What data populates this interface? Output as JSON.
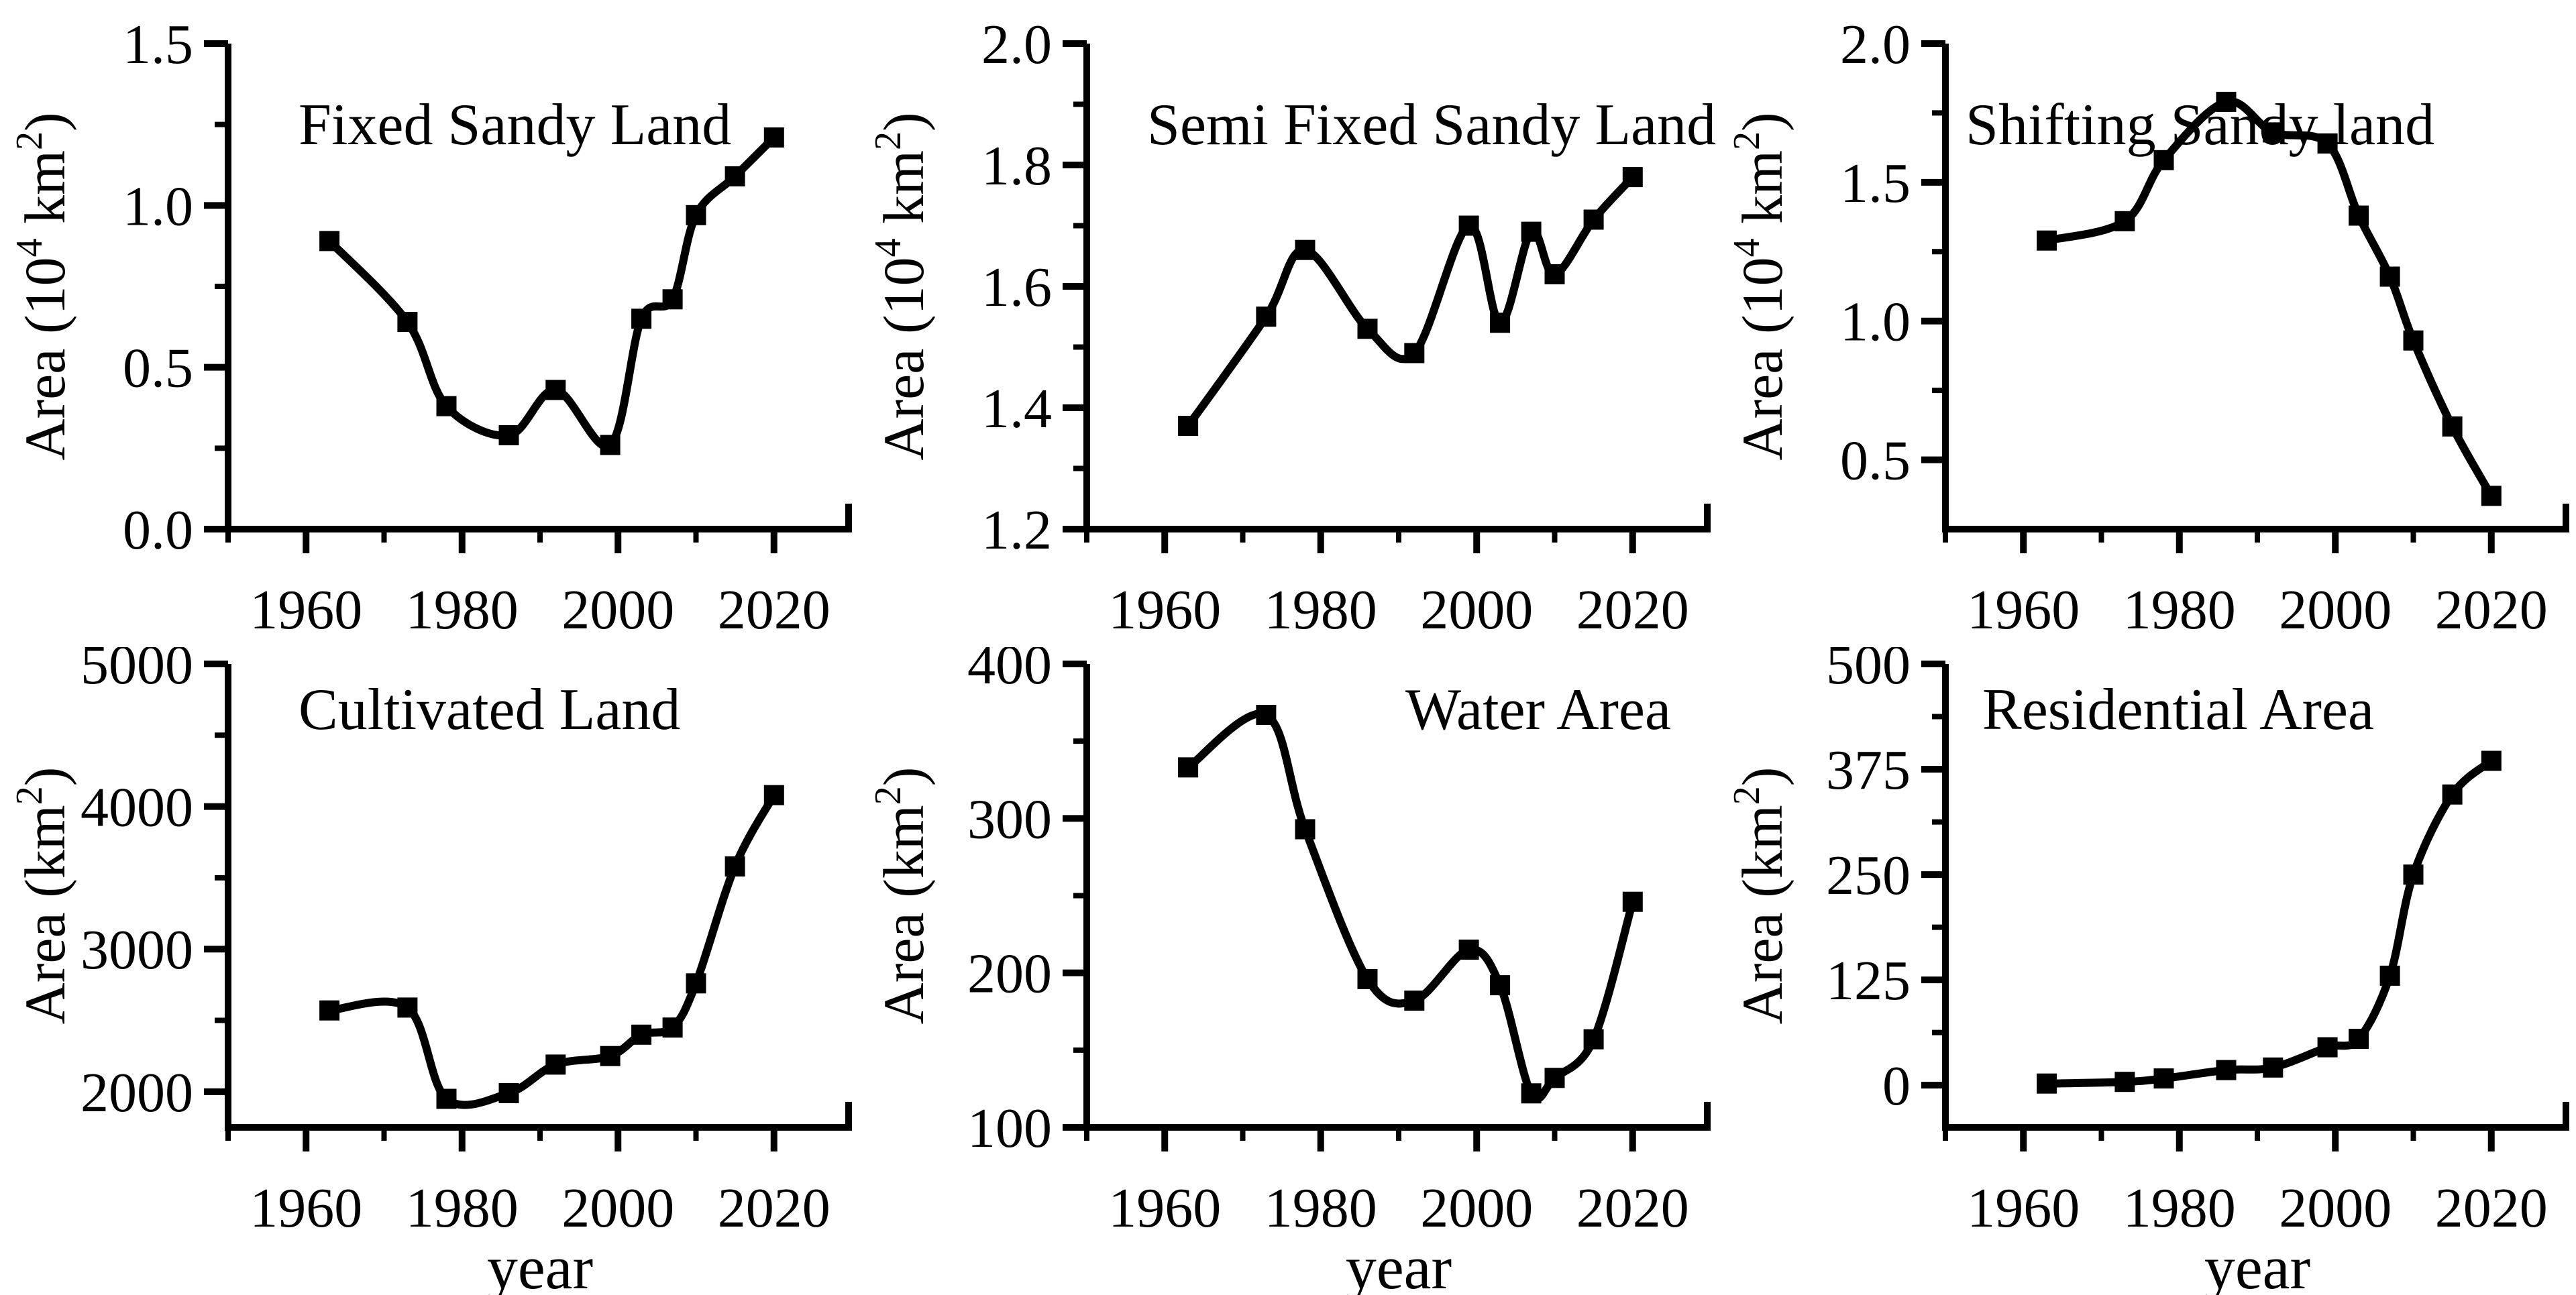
{
  "figure": {
    "background": "#ffffff",
    "ink_color": "#000000",
    "xlabel": "year",
    "years": [
      1963,
      1973,
      1978,
      1986,
      1992,
      1999,
      2003,
      2007,
      2010,
      2015,
      2020
    ],
    "x_axis": {
      "range": [
        1950,
        2030
      ],
      "major_ticks": [
        1960,
        1980,
        2000,
        2020
      ],
      "major_labels": [
        "1960",
        "1980",
        "2000",
        "2020"
      ],
      "minor_ticks": [
        1950,
        1970,
        1990,
        2010
      ]
    }
  },
  "chart_data": [
    {
      "id": "fixed-sandy-land",
      "type": "line",
      "title": "Fixed Sandy Land",
      "ylabel_parts": [
        {
          "t": "Area (10"
        },
        {
          "t": "4",
          "sup": true
        },
        {
          "t": " km"
        },
        {
          "t": "2",
          "sup": true
        },
        {
          "t": ")"
        }
      ],
      "xlabel": "",
      "x": [
        1963,
        1973,
        1978,
        1986,
        1992,
        1999,
        2003,
        2007,
        2010,
        2015,
        2020
      ],
      "y": [
        0.89,
        0.64,
        0.38,
        0.29,
        0.43,
        0.26,
        0.65,
        0.71,
        0.97,
        1.09,
        1.21
      ],
      "xlim": [
        1950,
        2030
      ],
      "ylim": [
        0.0,
        1.5
      ],
      "xticks": {
        "major": [
          1960,
          1980,
          2000,
          2020
        ],
        "labels": [
          "1960",
          "1980",
          "2000",
          "2020"
        ],
        "minor": [
          1950,
          1970,
          1990,
          2010
        ]
      },
      "yticks": {
        "major": [
          0.0,
          0.5,
          1.0,
          1.5
        ],
        "labels": [
          "0.0",
          "0.5",
          "1.0",
          "1.5"
        ],
        "minor": [
          0.25,
          0.75,
          1.25
        ]
      },
      "marker": "square",
      "line_color": "#000000",
      "grid": false,
      "row": 1,
      "title_offset_x": 105
    },
    {
      "id": "semi-fixed-sandy-land",
      "type": "line",
      "title": "Semi Fixed Sandy Land",
      "ylabel_parts": [
        {
          "t": "Area (10"
        },
        {
          "t": "4",
          "sup": true
        },
        {
          "t": " km"
        },
        {
          "t": "2",
          "sup": true
        },
        {
          "t": ")"
        }
      ],
      "xlabel": "",
      "x": [
        1963,
        1973,
        1978,
        1986,
        1992,
        1999,
        2003,
        2007,
        2010,
        2015,
        2020
      ],
      "y": [
        1.37,
        1.55,
        1.66,
        1.53,
        1.49,
        1.7,
        1.54,
        1.69,
        1.62,
        1.71,
        1.78
      ],
      "xlim": [
        1950,
        2030
      ],
      "ylim": [
        1.2,
        2.0
      ],
      "xticks": {
        "major": [
          1960,
          1980,
          2000,
          2020
        ],
        "labels": [
          "1960",
          "1980",
          "2000",
          "2020"
        ],
        "minor": [
          1950,
          1970,
          1990,
          2010
        ]
      },
      "yticks": {
        "major": [
          1.2,
          1.4,
          1.6,
          1.8,
          2.0
        ],
        "labels": [
          "1.2",
          "1.4",
          "1.6",
          "1.8",
          "2.0"
        ],
        "minor": [
          1.3,
          1.5,
          1.7,
          1.9
        ]
      },
      "marker": "square",
      "line_color": "#000000",
      "grid": false,
      "row": 1,
      "title_offset_x": 90
    },
    {
      "id": "shifting-sandy-land",
      "type": "line",
      "title": "Shifting Sandy land",
      "ylabel_parts": [
        {
          "t": "Area (10"
        },
        {
          "t": "4",
          "sup": true
        },
        {
          "t": " km"
        },
        {
          "t": "2",
          "sup": true
        },
        {
          "t": ")"
        }
      ],
      "xlabel": "",
      "x": [
        1963,
        1973,
        1978,
        1986,
        1992,
        1999,
        2003,
        2007,
        2010,
        2015,
        2020
      ],
      "y": [
        1.29,
        1.36,
        1.58,
        1.79,
        1.68,
        1.64,
        1.38,
        1.16,
        0.93,
        0.62,
        0.37
      ],
      "xlim": [
        1950,
        2030
      ],
      "ylim": [
        0.25,
        2.0
      ],
      "xticks": {
        "major": [
          1960,
          1980,
          2000,
          2020
        ],
        "labels": [
          "1960",
          "1980",
          "2000",
          "2020"
        ],
        "minor": [
          1950,
          1970,
          1990,
          2010
        ]
      },
      "yticks": {
        "major": [
          0.5,
          1.0,
          1.5,
          2.0
        ],
        "labels": [
          "0.5",
          "1.0",
          "1.5",
          "2.0"
        ],
        "minor": [
          0.75,
          1.25,
          1.75
        ]
      },
      "marker": "square",
      "line_color": "#000000",
      "grid": false,
      "row": 1,
      "title_offset_x": 30
    },
    {
      "id": "cultivated-land",
      "type": "line",
      "title": "Cultivated Land",
      "ylabel_parts": [
        {
          "t": "Area (km"
        },
        {
          "t": "2",
          "sup": true
        },
        {
          "t": ")"
        }
      ],
      "xlabel": "year",
      "x": [
        1963,
        1973,
        1978,
        1986,
        1992,
        1999,
        2003,
        2007,
        2010,
        2015,
        2020
      ],
      "y": [
        2570,
        2590,
        1950,
        1990,
        2190,
        2250,
        2400,
        2450,
        2760,
        3580,
        4080
      ],
      "xlim": [
        1950,
        2030
      ],
      "ylim": [
        1750,
        5000
      ],
      "xticks": {
        "major": [
          1960,
          1980,
          2000,
          2020
        ],
        "labels": [
          "1960",
          "1980",
          "2000",
          "2020"
        ],
        "minor": [
          1950,
          1970,
          1990,
          2010
        ]
      },
      "yticks": {
        "major": [
          2000,
          3000,
          4000,
          5000
        ],
        "labels": [
          "2000",
          "3000",
          "4000",
          "5000"
        ],
        "minor": [
          2500,
          3500,
          4500
        ]
      },
      "marker": "square",
      "line_color": "#000000",
      "grid": false,
      "row": 2,
      "title_offset_x": 105
    },
    {
      "id": "water-area",
      "type": "line",
      "title": "Water Area",
      "ylabel_parts": [
        {
          "t": "Area (km"
        },
        {
          "t": "2",
          "sup": true
        },
        {
          "t": ")"
        }
      ],
      "xlabel": "year",
      "x": [
        1963,
        1973,
        1978,
        1986,
        1992,
        1999,
        2003,
        2007,
        2010,
        2015,
        2020
      ],
      "y": [
        333,
        367,
        293,
        196,
        182,
        215,
        192,
        122,
        132,
        157,
        246
      ],
      "xlim": [
        1950,
        2030
      ],
      "ylim": [
        100,
        400
      ],
      "xticks": {
        "major": [
          1960,
          1980,
          2000,
          2020
        ],
        "labels": [
          "1960",
          "1980",
          "2000",
          "2020"
        ],
        "minor": [
          1950,
          1970,
          1990,
          2010
        ]
      },
      "yticks": {
        "major": [
          100,
          200,
          300,
          400
        ],
        "labels": [
          "100",
          "200",
          "300",
          "400"
        ],
        "minor": [
          150,
          250,
          350
        ]
      },
      "marker": "square",
      "line_color": "#000000",
      "grid": false,
      "row": 2,
      "title_offset_x": 475
    },
    {
      "id": "residential-area",
      "type": "line",
      "title": "Residential Area",
      "ylabel_parts": [
        {
          "t": "Area (km"
        },
        {
          "t": "2",
          "sup": true
        },
        {
          "t": ")"
        }
      ],
      "xlabel": "year",
      "x": [
        1963,
        1973,
        1978,
        1986,
        1992,
        1999,
        2003,
        2007,
        2010,
        2015,
        2020
      ],
      "y": [
        2,
        4,
        8,
        18,
        21,
        45,
        55,
        130,
        250,
        345,
        385
      ],
      "xlim": [
        1950,
        2030
      ],
      "ylim": [
        -50,
        500
      ],
      "xticks": {
        "major": [
          1960,
          1980,
          2000,
          2020
        ],
        "labels": [
          "1960",
          "1980",
          "2000",
          "2020"
        ],
        "minor": [
          1950,
          1970,
          1990,
          2010
        ]
      },
      "yticks": {
        "major": [
          0,
          125,
          250,
          375,
          500
        ],
        "labels": [
          "0",
          "125",
          "250",
          "375",
          "500"
        ],
        "minor": [
          62.5,
          187.5,
          312.5,
          437.5
        ]
      },
      "marker": "square",
      "line_color": "#000000",
      "grid": false,
      "row": 2,
      "title_offset_x": 55
    }
  ]
}
